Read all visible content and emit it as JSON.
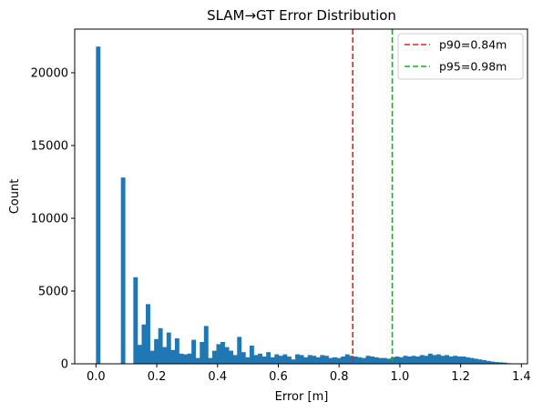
{
  "chart_data": {
    "type": "bar",
    "title": "SLAM→GT Error Distribution",
    "xlabel": "Error [m]",
    "ylabel": "Count",
    "xlim": [
      -0.07,
      1.42
    ],
    "ylim": [
      0,
      23000
    ],
    "xticks": [
      0.0,
      0.2,
      0.4,
      0.6,
      0.8,
      1.0,
      1.2,
      1.4
    ],
    "xtick_labels": [
      "0.0",
      "0.2",
      "0.4",
      "0.6",
      "0.8",
      "1.0",
      "1.2",
      "1.4"
    ],
    "yticks": [
      0,
      5000,
      10000,
      15000,
      20000
    ],
    "ytick_labels": [
      "0",
      "5000",
      "10000",
      "15000",
      "20000"
    ],
    "grid": false,
    "legend_position": "top-right",
    "bar_color": "#1f77b4",
    "bin_start": 0.0,
    "bin_width": 0.01366,
    "counts": [
      21800,
      0,
      0,
      0,
      0,
      0,
      12800,
      0,
      0,
      5950,
      1300,
      2700,
      4100,
      900,
      1700,
      2450,
      1150,
      2150,
      950,
      1750,
      700,
      650,
      700,
      1650,
      400,
      1500,
      2600,
      400,
      900,
      1350,
      1500,
      1150,
      900,
      600,
      1850,
      800,
      450,
      1250,
      600,
      700,
      500,
      800,
      450,
      650,
      550,
      650,
      500,
      300,
      650,
      600,
      450,
      600,
      550,
      450,
      600,
      550,
      400,
      450,
      400,
      500,
      650,
      550,
      500,
      450,
      400,
      550,
      500,
      450,
      400,
      400,
      350,
      450,
      500,
      450,
      550,
      500,
      550,
      500,
      600,
      550,
      700,
      600,
      650,
      550,
      600,
      500,
      550,
      500,
      500,
      450,
      400,
      350,
      300,
      250,
      200,
      150,
      120,
      100,
      80,
      40
    ],
    "reference_lines": [
      {
        "label": "p90=0.84m",
        "x": 0.845,
        "color": "#d62728"
      },
      {
        "label": "p95=0.98m",
        "x": 0.975,
        "color": "#2ca02c"
      }
    ]
  }
}
